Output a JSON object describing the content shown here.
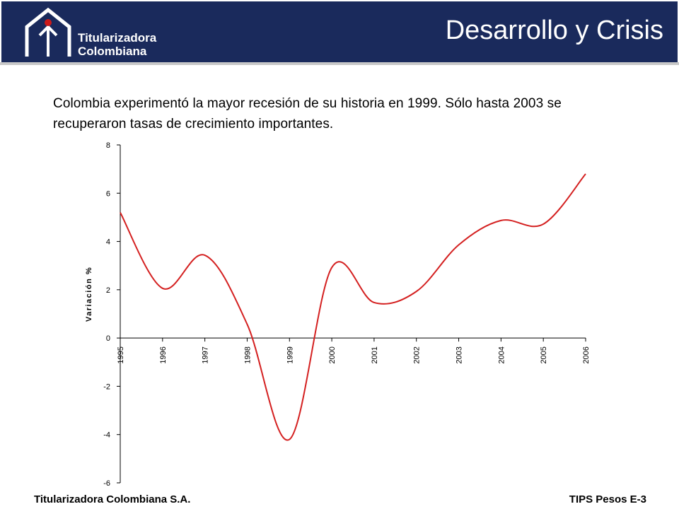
{
  "header": {
    "title": "Desarrollo y Crisis",
    "logo_text_line1": "Titularizadora",
    "logo_text_line2": "Colombiana",
    "band_color": "#1a2a5c",
    "logo_dot_color": "#cc1a1a"
  },
  "intro_text": "Colombia experimentó la mayor recesión de su historia en 1999. Sólo hasta 2003 se recuperaron tasas de crecimiento importantes.",
  "chart_data": {
    "type": "line",
    "title": "",
    "xlabel": "",
    "ylabel": "Variación %",
    "categories": [
      "1995",
      "1996",
      "1997",
      "1998",
      "1999",
      "2000",
      "2001",
      "2002",
      "2003",
      "2004",
      "2005",
      "2006"
    ],
    "series": [
      {
        "values": [
          5.2,
          2.06,
          3.43,
          0.57,
          -4.2,
          2.92,
          1.47,
          1.93,
          3.86,
          4.87,
          4.72,
          6.8
        ],
        "color": "#d42020"
      }
    ],
    "ylim": [
      -6,
      8
    ],
    "yticks": [
      "8",
      "6",
      "4",
      "2",
      "0",
      "-2",
      "-4",
      "-6"
    ],
    "grid": false,
    "legend": "none"
  },
  "footer": {
    "left": "Titularizadora Colombiana S.A.",
    "right": "TIPS Pesos E-3"
  }
}
